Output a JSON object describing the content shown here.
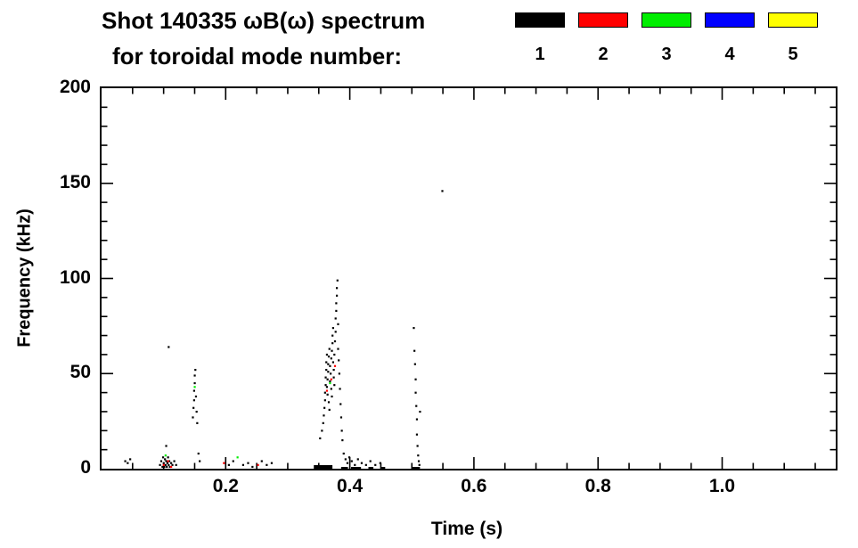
{
  "title": {
    "line1": "Shot 140335 ωB(ω) spectrum",
    "line2": "for toroidal mode number:"
  },
  "legend": {
    "items": [
      {
        "label": "1",
        "color": "#000000"
      },
      {
        "label": "2",
        "color": "#ff0000"
      },
      {
        "label": "3",
        "color": "#00ee00"
      },
      {
        "label": "4",
        "color": "#0000ff"
      },
      {
        "label": "5",
        "color": "#ffff00"
      }
    ]
  },
  "chart_data": {
    "type": "scatter",
    "title": "Shot 140335 ωB(ω) spectrum for toroidal mode number: 1 2 3 4 5",
    "xlabel": "Time (s)",
    "ylabel": "Frequency (kHz)",
    "xlim": [
      0,
      1.183
    ],
    "ylim": [
      0,
      200
    ],
    "grid": false,
    "legend_position": "top-right-above-plot",
    "x_major_ticks": [
      0.2,
      0.4,
      0.6,
      0.8,
      1.0
    ],
    "x_tick_labels": [
      "0.2",
      "0.4",
      "0.6",
      "0.8",
      "1.0"
    ],
    "x_minor_interval": 0.05,
    "y_major_ticks": [
      0,
      50,
      100,
      150,
      200
    ],
    "y_tick_labels": [
      "0",
      "50",
      "100",
      "150",
      "200"
    ],
    "y_minor_interval": 10,
    "series_note": "points are [time_s, frequency_kHz, toroidal_mode_number]; mode 1=black, 2=red, 3=green, 4=blue, 5=yellow",
    "points": [
      [
        0.038,
        4,
        1
      ],
      [
        0.042,
        3,
        1
      ],
      [
        0.046,
        5,
        1
      ],
      [
        0.094,
        2,
        1
      ],
      [
        0.096,
        4,
        1
      ],
      [
        0.098,
        1,
        1
      ],
      [
        0.099,
        6,
        1
      ],
      [
        0.1,
        3,
        1
      ],
      [
        0.101,
        1,
        1
      ],
      [
        0.102,
        5,
        1
      ],
      [
        0.103,
        2,
        1
      ],
      [
        0.104,
        4,
        1
      ],
      [
        0.105,
        1,
        1
      ],
      [
        0.106,
        3,
        1
      ],
      [
        0.107,
        6,
        1
      ],
      [
        0.108,
        2,
        1
      ],
      [
        0.109,
        4,
        1
      ],
      [
        0.11,
        1,
        1
      ],
      [
        0.112,
        3,
        1
      ],
      [
        0.114,
        2,
        1
      ],
      [
        0.117,
        4,
        1
      ],
      [
        0.12,
        2,
        1
      ],
      [
        0.108,
        64,
        1
      ],
      [
        0.104,
        12,
        1
      ],
      [
        0.1,
        2,
        2
      ],
      [
        0.107,
        4,
        2
      ],
      [
        0.112,
        1,
        2
      ],
      [
        0.103,
        7,
        3
      ],
      [
        0.147,
        27,
        1
      ],
      [
        0.148,
        32,
        1
      ],
      [
        0.149,
        36,
        1
      ],
      [
        0.149,
        41,
        1
      ],
      [
        0.15,
        45,
        1
      ],
      [
        0.15,
        49,
        1
      ],
      [
        0.151,
        52,
        1
      ],
      [
        0.152,
        38,
        1
      ],
      [
        0.153,
        30,
        1
      ],
      [
        0.154,
        24,
        1
      ],
      [
        0.15,
        43,
        3
      ],
      [
        0.156,
        8,
        1
      ],
      [
        0.158,
        4,
        1
      ],
      [
        0.197,
        3,
        2
      ],
      [
        0.205,
        2,
        1
      ],
      [
        0.212,
        4,
        1
      ],
      [
        0.219,
        6,
        3
      ],
      [
        0.228,
        2,
        1
      ],
      [
        0.236,
        3,
        1
      ],
      [
        0.243,
        1,
        1
      ],
      [
        0.252,
        2,
        2
      ],
      [
        0.258,
        4,
        1
      ],
      [
        0.266,
        2,
        1
      ],
      [
        0.274,
        3,
        1
      ],
      [
        0.352,
        16,
        1
      ],
      [
        0.355,
        20,
        1
      ],
      [
        0.357,
        24,
        1
      ],
      [
        0.358,
        28,
        1
      ],
      [
        0.359,
        32,
        1
      ],
      [
        0.36,
        36,
        1
      ],
      [
        0.36,
        40,
        1
      ],
      [
        0.361,
        44,
        1
      ],
      [
        0.361,
        48,
        1
      ],
      [
        0.362,
        52,
        1
      ],
      [
        0.362,
        56,
        1
      ],
      [
        0.363,
        60,
        1
      ],
      [
        0.363,
        43,
        1
      ],
      [
        0.364,
        39,
        1
      ],
      [
        0.364,
        47,
        1
      ],
      [
        0.365,
        51,
        1
      ],
      [
        0.365,
        55,
        1
      ],
      [
        0.366,
        59,
        1
      ],
      [
        0.366,
        35,
        1
      ],
      [
        0.367,
        31,
        1
      ],
      [
        0.367,
        63,
        1
      ],
      [
        0.368,
        54,
        1
      ],
      [
        0.368,
        46,
        1
      ],
      [
        0.369,
        50,
        1
      ],
      [
        0.37,
        42,
        1
      ],
      [
        0.37,
        58,
        1
      ],
      [
        0.371,
        62,
        1
      ],
      [
        0.371,
        38,
        1
      ],
      [
        0.372,
        66,
        1
      ],
      [
        0.372,
        70,
        1
      ],
      [
        0.373,
        74,
        1
      ],
      [
        0.373,
        56,
        1
      ],
      [
        0.374,
        52,
        1
      ],
      [
        0.374,
        48,
        1
      ],
      [
        0.375,
        44,
        1
      ],
      [
        0.375,
        60,
        1
      ],
      [
        0.376,
        67,
        1
      ],
      [
        0.377,
        72,
        1
      ],
      [
        0.377,
        79,
        1
      ],
      [
        0.378,
        83,
        1
      ],
      [
        0.378,
        87,
        1
      ],
      [
        0.379,
        91,
        1
      ],
      [
        0.379,
        95,
        1
      ],
      [
        0.38,
        99,
        1
      ],
      [
        0.381,
        76,
        1
      ],
      [
        0.381,
        63,
        1
      ],
      [
        0.382,
        57,
        1
      ],
      [
        0.383,
        50,
        1
      ],
      [
        0.384,
        42,
        1
      ],
      [
        0.385,
        34,
        1
      ],
      [
        0.386,
        27,
        1
      ],
      [
        0.387,
        20,
        1
      ],
      [
        0.388,
        15,
        1
      ],
      [
        0.363,
        41,
        2
      ],
      [
        0.37,
        47,
        2
      ],
      [
        0.376,
        54,
        2
      ],
      [
        0.368,
        45,
        3
      ],
      [
        0.39,
        8,
        1
      ],
      [
        0.393,
        5,
        1
      ],
      [
        0.396,
        3,
        1
      ],
      [
        0.399,
        6,
        1
      ],
      [
        0.403,
        4,
        1
      ],
      [
        0.408,
        2,
        1
      ],
      [
        0.413,
        5,
        1
      ],
      [
        0.419,
        3,
        1
      ],
      [
        0.426,
        2,
        1
      ],
      [
        0.433,
        4,
        1
      ],
      [
        0.441,
        2,
        1
      ],
      [
        0.449,
        3,
        1
      ],
      [
        0.503,
        74,
        1
      ],
      [
        0.504,
        62,
        1
      ],
      [
        0.505,
        55,
        1
      ],
      [
        0.506,
        47,
        1
      ],
      [
        0.506,
        40,
        1
      ],
      [
        0.507,
        33,
        1
      ],
      [
        0.508,
        26,
        1
      ],
      [
        0.508,
        18,
        1
      ],
      [
        0.509,
        12,
        1
      ],
      [
        0.51,
        7,
        1
      ],
      [
        0.511,
        4,
        1
      ],
      [
        0.512,
        2,
        1
      ],
      [
        0.513,
        30,
        1
      ],
      [
        0.549,
        146,
        1
      ]
    ],
    "segments": [
      {
        "t1": 0.342,
        "t2": 0.372,
        "f": 0,
        "mode": 1,
        "lw": 4
      },
      {
        "t1": 0.386,
        "t2": 0.397,
        "f": 0,
        "mode": 1,
        "lw": 2
      },
      {
        "t1": 0.402,
        "t2": 0.418,
        "f": 0,
        "mode": 1,
        "lw": 2
      },
      {
        "t1": 0.43,
        "t2": 0.438,
        "f": 0,
        "mode": 1,
        "lw": 2
      },
      {
        "t1": 0.451,
        "t2": 0.457,
        "f": 0,
        "mode": 1,
        "lw": 2
      },
      {
        "t1": 0.5,
        "t2": 0.513,
        "f": 0,
        "mode": 1,
        "lw": 2
      }
    ]
  }
}
